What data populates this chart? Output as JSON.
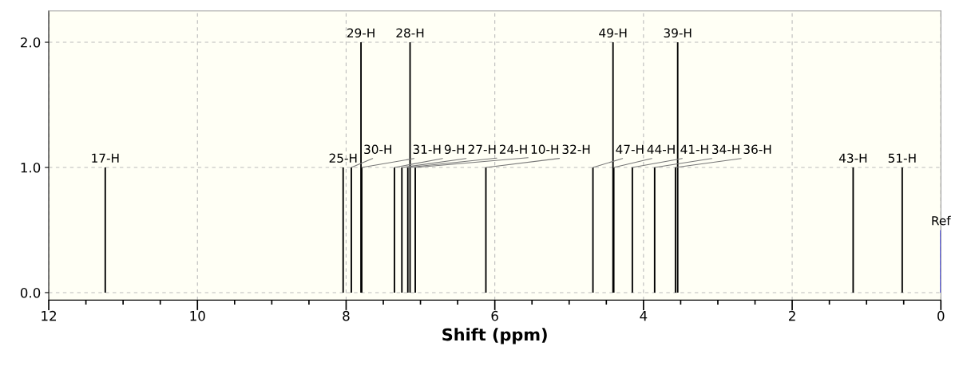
{
  "chart_data": {
    "type": "bar",
    "xlabel": "Shift (ppm)",
    "series": [
      {
        "color": "#000000",
        "x": [
          11.24,
          8.04,
          7.93,
          7.8,
          7.79,
          7.35,
          7.25,
          7.17,
          7.14,
          7.07,
          6.12,
          4.68,
          4.41,
          4.4,
          4.15,
          3.85,
          3.57,
          3.54,
          1.18,
          0.52
        ],
        "values": [
          1,
          1,
          1,
          2,
          1,
          1,
          1,
          1,
          2,
          1,
          1,
          1,
          2,
          1,
          1,
          1,
          1,
          2,
          1,
          1
        ]
      },
      {
        "color": "#0000ff",
        "x": [
          0.0
        ],
        "values": [
          0.5
        ]
      }
    ],
    "annotations": [
      {
        "text": "17-H",
        "x": 11.24,
        "y": 1
      },
      {
        "text": "25-H",
        "x": 8.04,
        "y": 1
      },
      {
        "text": "30-H",
        "x": 7.93,
        "y": 1
      },
      {
        "text": "29-H",
        "x": 7.8,
        "y": 2
      },
      {
        "text": "31-H",
        "x": 7.79,
        "y": 1
      },
      {
        "text": "9-H",
        "x": 7.35,
        "y": 1
      },
      {
        "text": "27-H",
        "x": 7.25,
        "y": 1
      },
      {
        "text": "24-H",
        "x": 7.17,
        "y": 1
      },
      {
        "text": "28-H",
        "x": 7.14,
        "y": 2
      },
      {
        "text": "10-H",
        "x": 7.07,
        "y": 1
      },
      {
        "text": "32-H",
        "x": 6.12,
        "y": 1
      },
      {
        "text": "47-H",
        "x": 4.68,
        "y": 1
      },
      {
        "text": "49-H",
        "x": 4.41,
        "y": 2
      },
      {
        "text": "44-H",
        "x": 4.4,
        "y": 1
      },
      {
        "text": "41-H",
        "x": 4.15,
        "y": 1
      },
      {
        "text": "34-H",
        "x": 3.85,
        "y": 1
      },
      {
        "text": "36-H",
        "x": 3.57,
        "y": 1
      },
      {
        "text": "39-H",
        "x": 3.54,
        "y": 2
      },
      {
        "text": "43-H",
        "x": 1.18,
        "y": 1
      },
      {
        "text": "51-H",
        "x": 0.52,
        "y": 1
      },
      {
        "text": "Ref",
        "x": 0.0,
        "y": 0.5
      }
    ],
    "xlim": [
      12,
      0
    ],
    "xticks": [
      12,
      {
        "value": 11.5,
        "label": null
      },
      {
        "value": 11,
        "label": null
      },
      {
        "value": 10.5,
        "label": null
      },
      10,
      {
        "value": 9.5,
        "label": null
      },
      {
        "value": 9,
        "label": null
      },
      {
        "value": 8.5,
        "label": null
      },
      8,
      {
        "value": 7.5,
        "label": null
      },
      {
        "value": 7,
        "label": null
      },
      {
        "value": 6.5,
        "label": null
      },
      6,
      {
        "value": 5.5,
        "label": null
      },
      {
        "value": 5,
        "label": null
      },
      {
        "value": 4.5,
        "label": null
      },
      4,
      {
        "value": 3.5,
        "label": null
      },
      {
        "value": 3,
        "label": null
      },
      {
        "value": 2.5,
        "label": null
      },
      2,
      {
        "value": 1.5,
        "label": null
      },
      {
        "value": 1,
        "label": null
      },
      {
        "value": 0.5,
        "label": null
      },
      0
    ],
    "ylim": [
      -0.06,
      2.25
    ],
    "yticks": [
      {
        "value": 0,
        "label": "0.0"
      },
      {
        "value": 1,
        "label": "1.0"
      },
      {
        "value": 2,
        "label": "2.0"
      }
    ],
    "grid": true
  }
}
